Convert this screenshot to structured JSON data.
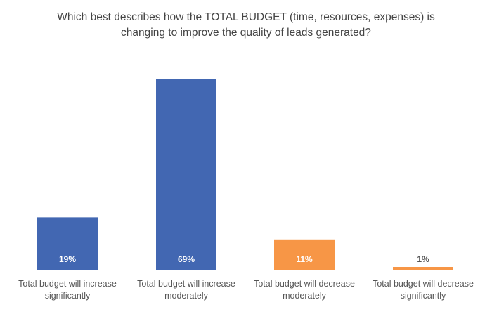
{
  "chart_data": {
    "type": "bar",
    "title_lines": [
      "Which best describes how the TOTAL BUDGET (time, resources, expenses) is",
      "changing to improve the quality of leads generated?"
    ],
    "categories": [
      [
        "Total budget will increase",
        "significantly"
      ],
      [
        "Total budget will increase",
        "moderately"
      ],
      [
        "Total budget will decrease",
        "moderately"
      ],
      [
        "Total budget will decrease",
        "significantly"
      ]
    ],
    "values": [
      19,
      69,
      11,
      1
    ],
    "data_labels": [
      "19%",
      "69%",
      "11%",
      "1%"
    ],
    "colors": [
      "#4267b2",
      "#4267b2",
      "#f79646",
      "#f79646"
    ],
    "ylim": [
      0,
      69
    ],
    "grid": false,
    "legend": "none"
  }
}
